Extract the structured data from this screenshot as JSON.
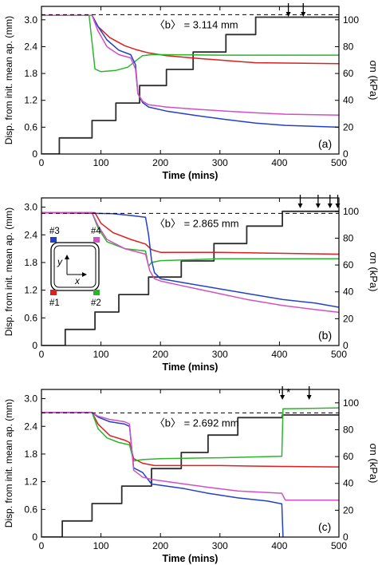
{
  "chart_data": [
    {
      "type": "line",
      "panel_label": "(a)",
      "annotation": "〈b〉 = 3.114 mm",
      "xlabel": "Time (mins)",
      "ylabel_left": "Disp. from init. mean ap. (mm)",
      "ylabel_right": "σn  (kPa)",
      "xlim": [
        0,
        500
      ],
      "ylim": [
        0,
        3.3
      ],
      "y2lim": [
        0,
        110
      ],
      "xticks": [
        "0",
        "100",
        "200",
        "300",
        "400",
        "500"
      ],
      "yticks": [
        "0",
        "0.6",
        "1.2",
        "1.8",
        "2.4",
        "3.0"
      ],
      "y2ticks": [
        "0",
        "20",
        "40",
        "60",
        "80",
        "100"
      ],
      "dashed_y": 3.114,
      "arrows_x": [
        415,
        440
      ],
      "series": [
        {
          "color": "#2e2e2e",
          "axis": "right",
          "x": [
            0,
            30,
            30,
            85,
            85,
            125,
            125,
            165,
            165,
            210,
            210,
            255,
            255,
            310,
            310,
            360,
            360,
            500
          ],
          "y": [
            0,
            0,
            12,
            12,
            25,
            25,
            38,
            38,
            51,
            51,
            63,
            63,
            76,
            76,
            89,
            89,
            102,
            102
          ]
        },
        {
          "color": "#dd1f1f",
          "x": [
            0,
            85,
            95,
            115,
            140,
            160,
            180,
            210,
            260,
            300,
            330,
            360,
            500
          ],
          "y": [
            3.1,
            3.1,
            2.85,
            2.6,
            2.42,
            2.33,
            2.26,
            2.2,
            2.14,
            2.1,
            2.07,
            2.04,
            2.02
          ]
        },
        {
          "color": "#2bb52b",
          "x": [
            0,
            80,
            85,
            90,
            100,
            125,
            145,
            160,
            170,
            185,
            210,
            300,
            400,
            500
          ],
          "y": [
            3.1,
            3.1,
            2.5,
            1.9,
            1.84,
            1.87,
            1.94,
            2.1,
            2.2,
            2.22,
            2.22,
            2.21,
            2.21,
            2.21
          ]
        },
        {
          "color": "#2341c8",
          "x": [
            0,
            85,
            95,
            110,
            130,
            150,
            158,
            162,
            170,
            180,
            210,
            260,
            310,
            360,
            410,
            500
          ],
          "y": [
            3.1,
            3.1,
            2.85,
            2.55,
            2.32,
            2.22,
            2.0,
            1.35,
            1.15,
            1.05,
            0.96,
            0.86,
            0.77,
            0.69,
            0.64,
            0.6
          ]
        },
        {
          "color": "#d24fc4",
          "x": [
            0,
            85,
            95,
            110,
            130,
            150,
            158,
            162,
            170,
            180,
            210,
            260,
            310,
            360,
            410,
            500
          ],
          "y": [
            3.1,
            3.1,
            2.75,
            2.4,
            2.22,
            2.15,
            1.9,
            1.35,
            1.18,
            1.1,
            1.05,
            1.0,
            0.96,
            0.92,
            0.89,
            0.87
          ]
        }
      ]
    },
    {
      "type": "line",
      "panel_label": "(b)",
      "annotation": "〈b〉 = 2.865 mm",
      "xlabel": "Time (mins)",
      "ylabel_left": "Disp. from init. mean ap. (mm)",
      "ylabel_right": "σn  (kPa)",
      "xlim": [
        0,
        500
      ],
      "ylim": [
        0,
        3.2
      ],
      "y2lim": [
        0,
        110
      ],
      "xticks": [
        "0",
        "100",
        "200",
        "300",
        "400",
        "500"
      ],
      "yticks": [
        "0",
        "0.6",
        "1.2",
        "1.8",
        "2.4",
        "3.0"
      ],
      "y2ticks": [
        "0",
        "20",
        "40",
        "60",
        "80",
        "100"
      ],
      "dashed_y": 2.865,
      "arrows_x": [
        435,
        465,
        485,
        498
      ],
      "inset": {
        "labels": [
          "#3",
          "#4",
          "#1",
          "#2"
        ],
        "colors": [
          "#2341c8",
          "#d24fc4",
          "#dd1f1f",
          "#2bb52b"
        ],
        "axis_x": "x",
        "axis_y": "y"
      },
      "series": [
        {
          "color": "#2e2e2e",
          "axis": "right",
          "x": [
            0,
            40,
            40,
            90,
            90,
            130,
            130,
            180,
            180,
            235,
            235,
            290,
            290,
            345,
            345,
            405,
            405,
            500
          ],
          "y": [
            0,
            0,
            12,
            12,
            25,
            25,
            38,
            38,
            51,
            51,
            63,
            63,
            76,
            76,
            89,
            89,
            100,
            100
          ]
        },
        {
          "color": "#dd1f1f",
          "x": [
            0,
            90,
            100,
            120,
            150,
            175,
            185,
            200,
            240,
            300,
            400,
            500
          ],
          "y": [
            2.88,
            2.88,
            2.65,
            2.45,
            2.3,
            2.2,
            2.08,
            2.02,
            2.02,
            2.02,
            2.0,
            1.98
          ]
        },
        {
          "color": "#2bb52b",
          "x": [
            0,
            85,
            95,
            110,
            140,
            175,
            180,
            185,
            200,
            250,
            300,
            400,
            500
          ],
          "y": [
            2.88,
            2.88,
            2.55,
            2.25,
            2.1,
            2.05,
            1.72,
            1.8,
            1.84,
            1.86,
            1.88,
            1.88,
            1.88
          ]
        },
        {
          "color": "#2341c8",
          "x": [
            0,
            120,
            150,
            175,
            180,
            185,
            190,
            200,
            235,
            290,
            345,
            405,
            460,
            500
          ],
          "y": [
            2.88,
            2.86,
            2.82,
            2.78,
            2.4,
            1.85,
            1.58,
            1.45,
            1.37,
            1.25,
            1.13,
            1.0,
            0.92,
            0.83
          ]
        },
        {
          "color": "#d24fc4",
          "x": [
            0,
            85,
            95,
            110,
            140,
            175,
            182,
            190,
            200,
            235,
            290,
            345,
            405,
            460,
            500
          ],
          "y": [
            2.88,
            2.88,
            2.6,
            2.3,
            2.1,
            1.98,
            1.62,
            1.45,
            1.4,
            1.3,
            1.15,
            1.0,
            0.87,
            0.78,
            0.72
          ]
        }
      ]
    },
    {
      "type": "line",
      "panel_label": "(c)",
      "annotation": "〈b〉 = 2.692 mm",
      "xlabel": "Time (mins)",
      "ylabel_left": "Disp. from init. mean ap. (mm)",
      "ylabel_right": "σn  (kPa)",
      "xlim": [
        0,
        500
      ],
      "ylim": [
        0,
        3.2
      ],
      "y2lim": [
        0,
        110
      ],
      "xticks": [
        "0",
        "100",
        "200",
        "300",
        "400",
        "500"
      ],
      "yticks": [
        "0",
        "0.6",
        "1.2",
        "1.8",
        "2.4",
        "3.0"
      ],
      "y2ticks": [
        "0",
        "20",
        "40",
        "60",
        "80",
        "100"
      ],
      "dashed_y": 2.692,
      "arrows_x": [
        405,
        450
      ],
      "arrow_star": "*",
      "series": [
        {
          "color": "#2e2e2e",
          "axis": "right",
          "x": [
            0,
            35,
            35,
            85,
            85,
            135,
            135,
            185,
            185,
            235,
            235,
            280,
            280,
            330,
            330,
            405,
            405,
            500
          ],
          "y": [
            0,
            0,
            12,
            12,
            25,
            25,
            38,
            38,
            51,
            51,
            63,
            63,
            76,
            76,
            89,
            89,
            91,
            91
          ]
        },
        {
          "color": "#dd1f1f",
          "x": [
            0,
            85,
            95,
            115,
            140,
            148,
            155,
            170,
            190,
            250,
            300,
            350,
            404,
            410,
            500
          ],
          "y": [
            2.7,
            2.7,
            2.45,
            2.2,
            2.1,
            2.05,
            1.7,
            1.6,
            1.55,
            1.55,
            1.55,
            1.54,
            1.53,
            1.53,
            1.52
          ]
        },
        {
          "color": "#2bb52b",
          "x": [
            0,
            85,
            95,
            110,
            130,
            148,
            155,
            170,
            200,
            300,
            404,
            406,
            500
          ],
          "y": [
            2.7,
            2.7,
            2.35,
            2.15,
            2.05,
            2.0,
            1.65,
            1.68,
            1.7,
            1.72,
            1.75,
            2.78,
            2.8
          ]
        },
        {
          "color": "#2341c8",
          "x": [
            0,
            85,
            95,
            115,
            140,
            148,
            155,
            170,
            185,
            240,
            280,
            330,
            380,
            404,
            406
          ],
          "y": [
            2.7,
            2.7,
            2.6,
            2.5,
            2.45,
            2.4,
            1.5,
            1.4,
            1.15,
            1.05,
            0.95,
            0.85,
            0.78,
            0.72,
            0.0
          ]
        },
        {
          "color": "#d24fc4",
          "x": [
            0,
            85,
            95,
            115,
            140,
            148,
            155,
            170,
            185,
            240,
            280,
            330,
            404,
            410,
            500
          ],
          "y": [
            2.7,
            2.7,
            2.62,
            2.55,
            2.5,
            2.45,
            1.45,
            1.3,
            1.25,
            1.15,
            1.08,
            1.0,
            0.95,
            0.8,
            0.8
          ]
        }
      ]
    }
  ]
}
